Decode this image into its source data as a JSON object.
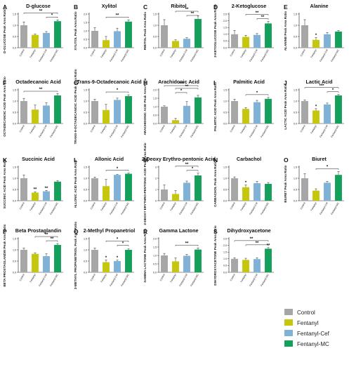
{
  "legend": {
    "entries": [
      {
        "label": "Control",
        "color": "#a6a6a6"
      },
      {
        "label": "Fentanyl",
        "color": "#c6c60c"
      },
      {
        "label": "Fentanyl-Cef",
        "color": "#7fb2d6"
      },
      {
        "label": "Fentanyl-MC",
        "color": "#14a05a"
      }
    ]
  },
  "chart_data": [
    {
      "type": "bar",
      "panel": "A",
      "title": "D-glucose",
      "ylabel": "D-GLUCOSE Peak Area Ratio",
      "categories": [
        "Control",
        "Fentanyl",
        "Fentanyl-Cef",
        "Fentanyl-MC"
      ],
      "values": [
        1.0,
        0.57,
        0.66,
        1.18
      ],
      "errors": [
        0.15,
        0.04,
        0.06,
        0.06
      ],
      "ylim": [
        0,
        1.5
      ],
      "yticks": [
        0.0,
        0.5,
        1.0,
        1.5
      ],
      "sig": [
        {
          "from": 2,
          "to": 3,
          "label": "*"
        },
        {
          "from": 0,
          "to": 3,
          "label": "**"
        }
      ],
      "bar_sig": []
    },
    {
      "type": "bar",
      "panel": "B",
      "title": "Xylitol",
      "ylabel": "XYLITOL Peak Area Ratio",
      "categories": [
        "Control",
        "Fentanyl",
        "Fentanyl-Cef",
        "Fentanyl-MC"
      ],
      "values": [
        1.0,
        0.45,
        0.98,
        1.55
      ],
      "errors": [
        0.2,
        0.22,
        0.18,
        0.1
      ],
      "ylim": [
        0,
        2.0
      ],
      "yticks": [
        0.0,
        0.5,
        1.0,
        1.5,
        2.0
      ],
      "sig": [
        {
          "from": 1,
          "to": 3,
          "label": "**"
        }
      ],
      "bar_sig": []
    },
    {
      "type": "bar",
      "panel": "C",
      "title": "Ribitol",
      "ylabel": "RIBITOL Peak Area Ratio",
      "categories": [
        "Control",
        "Fentanyl",
        "Fentanyl-Cef",
        "Fentanyl-MC"
      ],
      "values": [
        1.0,
        0.3,
        0.4,
        1.28
      ],
      "errors": [
        0.25,
        0.05,
        0.05,
        0.15
      ],
      "ylim": [
        0,
        1.5
      ],
      "yticks": [
        0.0,
        0.5,
        1.0,
        1.5
      ],
      "sig": [
        {
          "from": 2,
          "to": 3,
          "label": "**"
        },
        {
          "from": 1,
          "to": 3,
          "label": "**"
        }
      ],
      "bar_sig": []
    },
    {
      "type": "bar",
      "panel": "D",
      "title": "2-Ketoglucose",
      "ylabel": "2-KETOGLUCOSE Peak Area Ratio",
      "categories": [
        "Control",
        "Fentanyl",
        "Fentanyl-Cef",
        "Fentanyl-MC"
      ],
      "values": [
        1.0,
        0.8,
        0.95,
        1.8
      ],
      "errors": [
        0.28,
        0.12,
        0.1,
        0.15
      ],
      "ylim": [
        0,
        2.5
      ],
      "yticks": [
        0.0,
        0.5,
        1.0,
        1.5,
        2.0,
        2.5
      ],
      "sig": [
        {
          "from": 2,
          "to": 3,
          "label": "**"
        },
        {
          "from": 1,
          "to": 3,
          "label": "**"
        }
      ],
      "bar_sig": []
    },
    {
      "type": "bar",
      "panel": "E",
      "title": "Alanine",
      "ylabel": "ALANINE Peak Area Ratio",
      "categories": [
        "Control",
        "Fentanyl",
        "Fentanyl-Cef",
        "Fentanyl-MC"
      ],
      "values": [
        1.0,
        0.35,
        0.6,
        0.72
      ],
      "errors": [
        0.25,
        0.1,
        0.08,
        0.05
      ],
      "ylim": [
        0,
        1.5
      ],
      "yticks": [
        0.0,
        0.5,
        1.0,
        1.5
      ],
      "sig": [],
      "bar_sig": [
        {
          "bar": 1,
          "label": "*"
        }
      ]
    },
    {
      "type": "bar",
      "panel": "F",
      "title": "Octadecanoic Acid",
      "ylabel": "OCTADECANOIC ACID Peak Area Ratio",
      "categories": [
        "Control",
        "Fentanyl",
        "Fentanyl-Cef",
        "Fentanyl-MC"
      ],
      "values": [
        1.0,
        0.62,
        0.8,
        1.25
      ],
      "errors": [
        0.12,
        0.2,
        0.12,
        0.08
      ],
      "ylim": [
        0,
        1.5
      ],
      "yticks": [
        0.0,
        0.5,
        1.0,
        1.5
      ],
      "sig": [
        {
          "from": 0,
          "to": 3,
          "label": "**"
        }
      ],
      "bar_sig": []
    },
    {
      "type": "bar",
      "panel": "G",
      "title": "Trans-9-Octadecanoic Acid",
      "ylabel": "TRANS-9-OCTADECANOIC ACID Peak Area Ratio",
      "categories": [
        "Control",
        "Fentanyl",
        "Fentanyl-Cef",
        "Fentanyl-MC"
      ],
      "values": [
        1.0,
        0.6,
        1.05,
        1.22
      ],
      "errors": [
        0.08,
        0.25,
        0.08,
        0.06
      ],
      "ylim": [
        0,
        1.5
      ],
      "yticks": [
        0.0,
        0.5,
        1.0,
        1.5
      ],
      "sig": [
        {
          "from": 1,
          "to": 3,
          "label": "*"
        }
      ],
      "bar_sig": []
    },
    {
      "type": "bar",
      "panel": "H",
      "title": "Arachidonic Acid",
      "ylabel": "ARACHIDONIC ACID Peak Area Ratio",
      "categories": [
        "Control",
        "Fentanyl",
        "Fentanyl-Cef",
        "Fentanyl-MC"
      ],
      "values": [
        1.0,
        0.2,
        1.05,
        1.55
      ],
      "errors": [
        0.05,
        0.1,
        0.25,
        0.12
      ],
      "ylim": [
        0,
        2.0
      ],
      "yticks": [
        0.0,
        0.5,
        1.0,
        1.5,
        2.0
      ],
      "sig": [
        {
          "from": 1,
          "to": 2,
          "label": "*"
        },
        {
          "from": 1,
          "to": 3,
          "label": "**"
        },
        {
          "from": 0,
          "to": 3,
          "label": "***"
        }
      ],
      "bar_sig": []
    },
    {
      "type": "bar",
      "panel": "I",
      "title": "Palmitic Acid",
      "ylabel": "PALMITIC ACID Peak Area Ratio",
      "categories": [
        "Control",
        "Fentanyl",
        "Fentanyl-Cef",
        "Fentanyl-MC"
      ],
      "values": [
        1.0,
        0.65,
        0.95,
        1.1
      ],
      "errors": [
        0.08,
        0.06,
        0.08,
        0.06
      ],
      "ylim": [
        0,
        1.5
      ],
      "yticks": [
        0.0,
        0.5,
        1.0,
        1.5
      ],
      "sig": [
        {
          "from": 1,
          "to": 3,
          "label": "*"
        }
      ],
      "bar_sig": []
    },
    {
      "type": "bar",
      "panel": "J",
      "title": "Lactic Acid",
      "ylabel": "LACTIC ACID Peak Area Ratio",
      "categories": [
        "Control",
        "Fentanyl",
        "Fentanyl-Cef",
        "Fentanyl-MC"
      ],
      "values": [
        1.0,
        0.58,
        0.85,
        1.25
      ],
      "errors": [
        0.05,
        0.08,
        0.06,
        0.04
      ],
      "ylim": [
        0,
        1.5
      ],
      "yticks": [
        0.0,
        0.5,
        1.0,
        1.5
      ],
      "sig": [
        {
          "from": 2,
          "to": 3,
          "label": "*"
        },
        {
          "from": 0,
          "to": 3,
          "label": "***"
        }
      ],
      "bar_sig": [
        {
          "bar": 1,
          "label": "*"
        }
      ]
    },
    {
      "type": "bar",
      "panel": "K",
      "title": "Succinic Acid",
      "ylabel": "SUCCINIC ACID Peak Area Ratio",
      "categories": [
        "Control",
        "Fentanyl",
        "Fentanyl-Cef",
        "Fentanyl-MC"
      ],
      "values": [
        1.0,
        0.36,
        0.42,
        0.85
      ],
      "errors": [
        0.15,
        0.04,
        0.04,
        0.05
      ],
      "ylim": [
        0,
        1.5
      ],
      "yticks": [
        0.0,
        0.5,
        1.0,
        1.5
      ],
      "sig": [],
      "bar_sig": [
        {
          "bar": 1,
          "label": "**"
        },
        {
          "bar": 2,
          "label": "**"
        }
      ]
    },
    {
      "type": "bar",
      "panel": "L",
      "title": "Allonic Acid",
      "ylabel": "ALLONIC ACID Peak Area Ratio",
      "categories": [
        "Control",
        "Fentanyl",
        "Fentanyl-Cef",
        "Fentanyl-MC"
      ],
      "values": [
        1.0,
        0.65,
        1.15,
        1.2
      ],
      "errors": [
        0.05,
        0.3,
        0.02,
        0.03
      ],
      "ylim": [
        0,
        1.5
      ],
      "yticks": [
        0.0,
        0.5,
        1.0,
        1.5
      ],
      "sig": [
        {
          "from": 1,
          "to": 3,
          "label": "*"
        }
      ],
      "bar_sig": []
    },
    {
      "type": "bar",
      "panel": "M",
      "title": "2-Deoxy Erythro-pentonic Acid",
      "ylabel": "2-DEOXY ERYTHRO-PENTONIC ACID Peak Area Ratio",
      "categories": [
        "Control",
        "Fentanyl",
        "Fentanyl-Cef",
        "Fentanyl-MC"
      ],
      "values": [
        1.0,
        0.6,
        1.6,
        2.25
      ],
      "errors": [
        0.4,
        0.3,
        0.15,
        0.2
      ],
      "ylim": [
        0,
        3
      ],
      "yticks": [
        0,
        1,
        2,
        3
      ],
      "sig": [
        {
          "from": 2,
          "to": 3,
          "label": "*"
        },
        {
          "from": 1,
          "to": 3,
          "label": "**"
        }
      ],
      "bar_sig": []
    },
    {
      "type": "bar",
      "panel": "N",
      "title": "Carbachol",
      "ylabel": "CARBACHOL Peak Area Ratio",
      "categories": [
        "Control",
        "Fentanyl",
        "Fentanyl-Cef",
        "Fentanyl-MC"
      ],
      "values": [
        1.0,
        0.6,
        0.78,
        0.75
      ],
      "errors": [
        0.06,
        0.1,
        0.08,
        0.06
      ],
      "ylim": [
        0,
        1.5
      ],
      "yticks": [
        0.0,
        0.5,
        1.0,
        1.5
      ],
      "sig": [],
      "bar_sig": [
        {
          "bar": 1,
          "label": "*"
        }
      ]
    },
    {
      "type": "bar",
      "panel": "O",
      "title": "Biuret",
      "ylabel": "BIURET Peak Area Ratio",
      "categories": [
        "Control",
        "Fentanyl",
        "Fentanyl-Cef",
        "Fentanyl-MC"
      ],
      "values": [
        1.0,
        0.45,
        0.8,
        1.15
      ],
      "errors": [
        0.2,
        0.08,
        0.06,
        0.15
      ],
      "ylim": [
        0,
        1.5
      ],
      "yticks": [
        0.0,
        0.5,
        1.0,
        1.5
      ],
      "sig": [
        {
          "from": 1,
          "to": 3,
          "label": "*"
        }
      ],
      "bar_sig": []
    },
    {
      "type": "bar",
      "panel": "P",
      "title": "Beta Prostaglandin",
      "ylabel": "BETA PROSTAGLANDIN Peak Area Ratio",
      "categories": [
        "Control",
        "Fentanyl",
        "Fentanyl-Cef",
        "Fentanyl-MC"
      ],
      "values": [
        1.0,
        0.82,
        0.72,
        1.22
      ],
      "errors": [
        0.08,
        0.05,
        0.1,
        0.06
      ],
      "ylim": [
        0,
        1.5
      ],
      "yticks": [
        0.0,
        0.5,
        1.0,
        1.5
      ],
      "sig": [
        {
          "from": 2,
          "to": 3,
          "label": "**"
        },
        {
          "from": 1,
          "to": 3,
          "label": "**"
        }
      ],
      "bar_sig": []
    },
    {
      "type": "bar",
      "panel": "Q",
      "title": "2-Methyl Propanetriol",
      "ylabel": "2-METHYL PROPANETRIOL Peak Area Ratio",
      "categories": [
        "Control",
        "Fentanyl",
        "Fentanyl-Cef",
        "Fentanyl-MC"
      ],
      "values": [
        1.0,
        0.45,
        0.5,
        1.0
      ],
      "errors": [
        0.08,
        0.1,
        0.04,
        0.04
      ],
      "ylim": [
        0,
        1.5
      ],
      "yticks": [
        0.0,
        0.5,
        1.0,
        1.5
      ],
      "sig": [
        {
          "from": 2,
          "to": 3,
          "label": "*"
        },
        {
          "from": 1,
          "to": 3,
          "label": "*"
        }
      ],
      "bar_sig": [
        {
          "bar": 1,
          "label": "*"
        },
        {
          "bar": 2,
          "label": "*"
        }
      ]
    },
    {
      "type": "bar",
      "panel": "R",
      "title": "Gamma Lactone",
      "ylabel": "GAMMA LACTONE Peak Area Ratio",
      "categories": [
        "Control",
        "Fentanyl",
        "Fentanyl-Cef",
        "Fentanyl-MC"
      ],
      "values": [
        1.0,
        0.65,
        0.98,
        1.35
      ],
      "errors": [
        0.12,
        0.2,
        0.08,
        0.1
      ],
      "ylim": [
        0,
        2.0
      ],
      "yticks": [
        0.0,
        0.5,
        1.0,
        1.5,
        2.0
      ],
      "sig": [
        {
          "from": 1,
          "to": 3,
          "label": "**"
        }
      ],
      "bar_sig": []
    },
    {
      "type": "bar",
      "panel": "S",
      "title": "Dihydroxyacetone",
      "ylabel": "DIHYDROXYACETONE Peak Area Ratio",
      "categories": [
        "Control",
        "Fentanyl",
        "Fentanyl-Cef",
        "Fentanyl-MC"
      ],
      "values": [
        1.0,
        0.92,
        0.98,
        1.75
      ],
      "errors": [
        0.08,
        0.12,
        0.1,
        0.08
      ],
      "ylim": [
        0,
        2.5
      ],
      "yticks": [
        0.0,
        0.5,
        1.0,
        1.5,
        2.0,
        2.5
      ],
      "sig": [
        {
          "from": 1,
          "to": 3,
          "label": "**"
        },
        {
          "from": 0,
          "to": 3,
          "label": "**"
        }
      ],
      "bar_sig": [
        {
          "bar": 3,
          "label": "**"
        }
      ]
    }
  ]
}
